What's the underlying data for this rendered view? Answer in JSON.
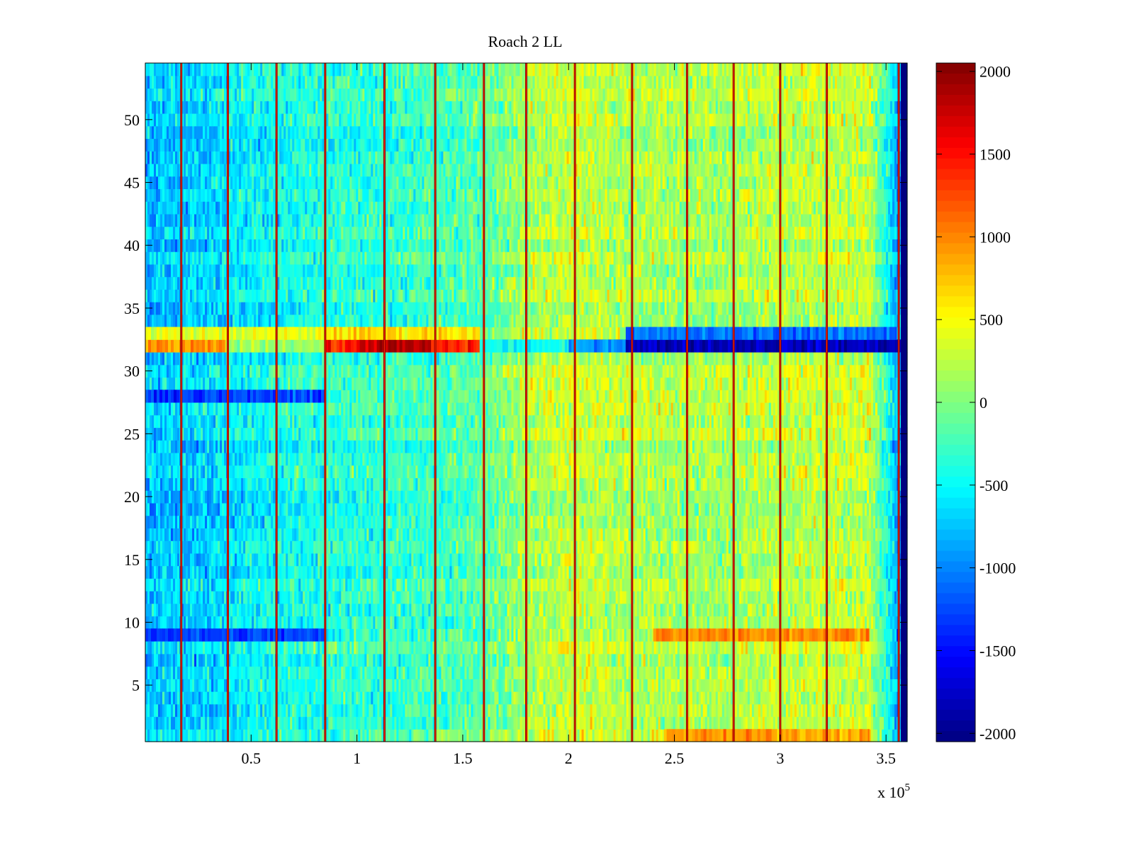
{
  "chart_data": {
    "type": "heatmap",
    "title": "Roach 2 LL",
    "xlabel": "",
    "ylabel": "",
    "x_multiplier": "x 10",
    "x_multiplier_exp": "5",
    "xlim": [
      0,
      3.6
    ],
    "ylim": [
      0.5,
      54.5
    ],
    "x_ticks": [
      0.5,
      1,
      1.5,
      2,
      2.5,
      3,
      3.5
    ],
    "x_tick_labels": [
      "0.5",
      "1",
      "1.5",
      "2",
      "2.5",
      "3",
      "3.5"
    ],
    "y_ticks": [
      5,
      10,
      15,
      20,
      25,
      30,
      35,
      40,
      45,
      50
    ],
    "y_tick_labels": [
      "5",
      "10",
      "15",
      "20",
      "25",
      "30",
      "35",
      "40",
      "45",
      "50"
    ],
    "rows": 54,
    "colormap": "jet",
    "colorbar": {
      "range": [
        -2050,
        2050
      ],
      "ticks": [
        2000,
        1500,
        1000,
        500,
        0,
        -500,
        -1000,
        -1500,
        -2000
      ],
      "tick_labels": [
        "2000",
        "1500",
        "1000",
        "500",
        "0",
        "-500",
        "-1000",
        "-1500",
        "-2000"
      ]
    },
    "column_trend": [
      {
        "x": 0.0,
        "value": -750
      },
      {
        "x": 0.3,
        "value": -650
      },
      {
        "x": 0.6,
        "value": -450
      },
      {
        "x": 0.9,
        "value": -350
      },
      {
        "x": 1.2,
        "value": -300
      },
      {
        "x": 1.6,
        "value": -150
      },
      {
        "x": 1.8,
        "value": 150
      },
      {
        "x": 2.0,
        "value": 300
      },
      {
        "x": 2.3,
        "value": 200
      },
      {
        "x": 2.7,
        "value": 150
      },
      {
        "x": 3.0,
        "value": 250
      },
      {
        "x": 3.42,
        "value": 300
      },
      {
        "x": 3.55,
        "value": -800
      }
    ],
    "low_edge_region": {
      "x_start": 3.57,
      "x_end": 3.6,
      "value": -2050
    },
    "vertical_spikes_x": [
      0.17,
      0.39,
      0.62,
      0.85,
      1.13,
      1.37,
      1.6,
      1.8,
      2.03,
      2.3,
      2.56,
      2.78,
      3.0,
      3.22,
      3.56
    ],
    "row_bands": [
      {
        "row": 32,
        "x_start": 0.0,
        "x_end": 0.38,
        "value": 900
      },
      {
        "row": 32,
        "x_start": 0.38,
        "x_end": 0.85,
        "value": 150
      },
      {
        "row": 32,
        "x_start": 0.85,
        "x_end": 1.0,
        "value": 1400
      },
      {
        "row": 32,
        "x_start": 1.0,
        "x_end": 1.35,
        "value": 1800
      },
      {
        "row": 32,
        "x_start": 1.35,
        "x_end": 1.58,
        "value": 1400
      },
      {
        "row": 32,
        "x_start": 1.58,
        "x_end": 2.0,
        "value": -500
      },
      {
        "row": 32,
        "x_start": 2.0,
        "x_end": 2.27,
        "value": -900
      },
      {
        "row": 32,
        "x_start": 2.27,
        "x_end": 3.6,
        "value": -1800
      },
      {
        "row": 33,
        "x_start": 0.0,
        "x_end": 0.85,
        "value": 400
      },
      {
        "row": 33,
        "x_start": 0.85,
        "x_end": 1.58,
        "value": 650
      },
      {
        "row": 33,
        "x_start": 2.27,
        "x_end": 3.55,
        "value": -1100
      },
      {
        "row": 9,
        "x_start": 0.0,
        "x_end": 0.85,
        "value": -1300
      },
      {
        "row": 9,
        "x_start": 2.4,
        "x_end": 3.42,
        "value": 1000
      },
      {
        "row": 28,
        "x_start": 0.0,
        "x_end": 0.85,
        "value": -1300
      },
      {
        "row": 1,
        "x_start": 2.45,
        "x_end": 3.42,
        "value": 900
      }
    ]
  }
}
